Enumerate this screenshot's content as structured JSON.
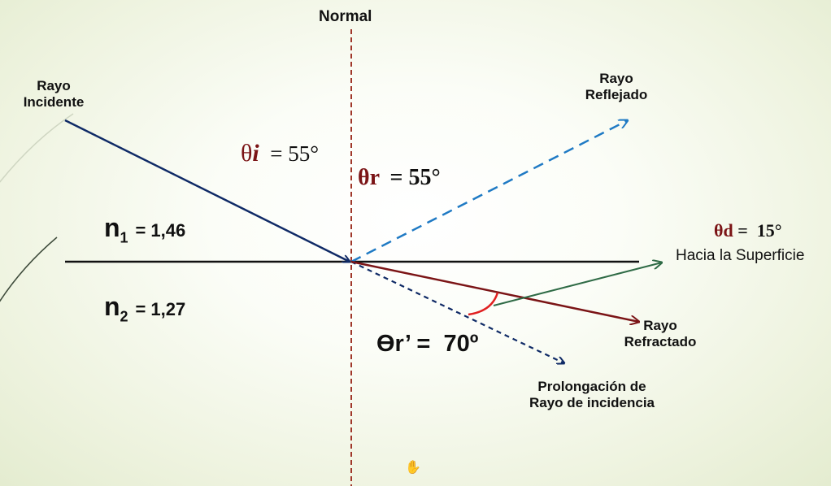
{
  "labels": {
    "normal": "Normal",
    "incident_ray": [
      "Rayo",
      "Incidente"
    ],
    "reflected_ray": [
      "Rayo",
      "Reflejado"
    ],
    "refracted_ray": [
      "Rayo",
      "Refractado"
    ],
    "extension": [
      "Prolongación de",
      "Rayo de incidencia"
    ],
    "surface_direction": "Hacia la Superficie"
  },
  "media": {
    "n1": {
      "symbol": "n",
      "subscript": "1",
      "value": "= 1,46"
    },
    "n2": {
      "symbol": "n",
      "subscript": "2",
      "value": "= 1,27"
    }
  },
  "angles": {
    "incidence": {
      "symbol": "θ",
      "var": "i",
      "value": "= 55°"
    },
    "reflection": {
      "symbol": "θr",
      "value": "= 55°"
    },
    "refraction": {
      "text": "ϴr’ =  70º"
    },
    "deviation": {
      "symbol": "θd",
      "value": "=  15°"
    }
  },
  "colors": {
    "incident": "#0f2a66",
    "reflected": "#1f7ac4",
    "refracted": "#7b1416",
    "surface": "#2f6b46",
    "normal": "#a0372a",
    "arc": "#e02020"
  }
}
